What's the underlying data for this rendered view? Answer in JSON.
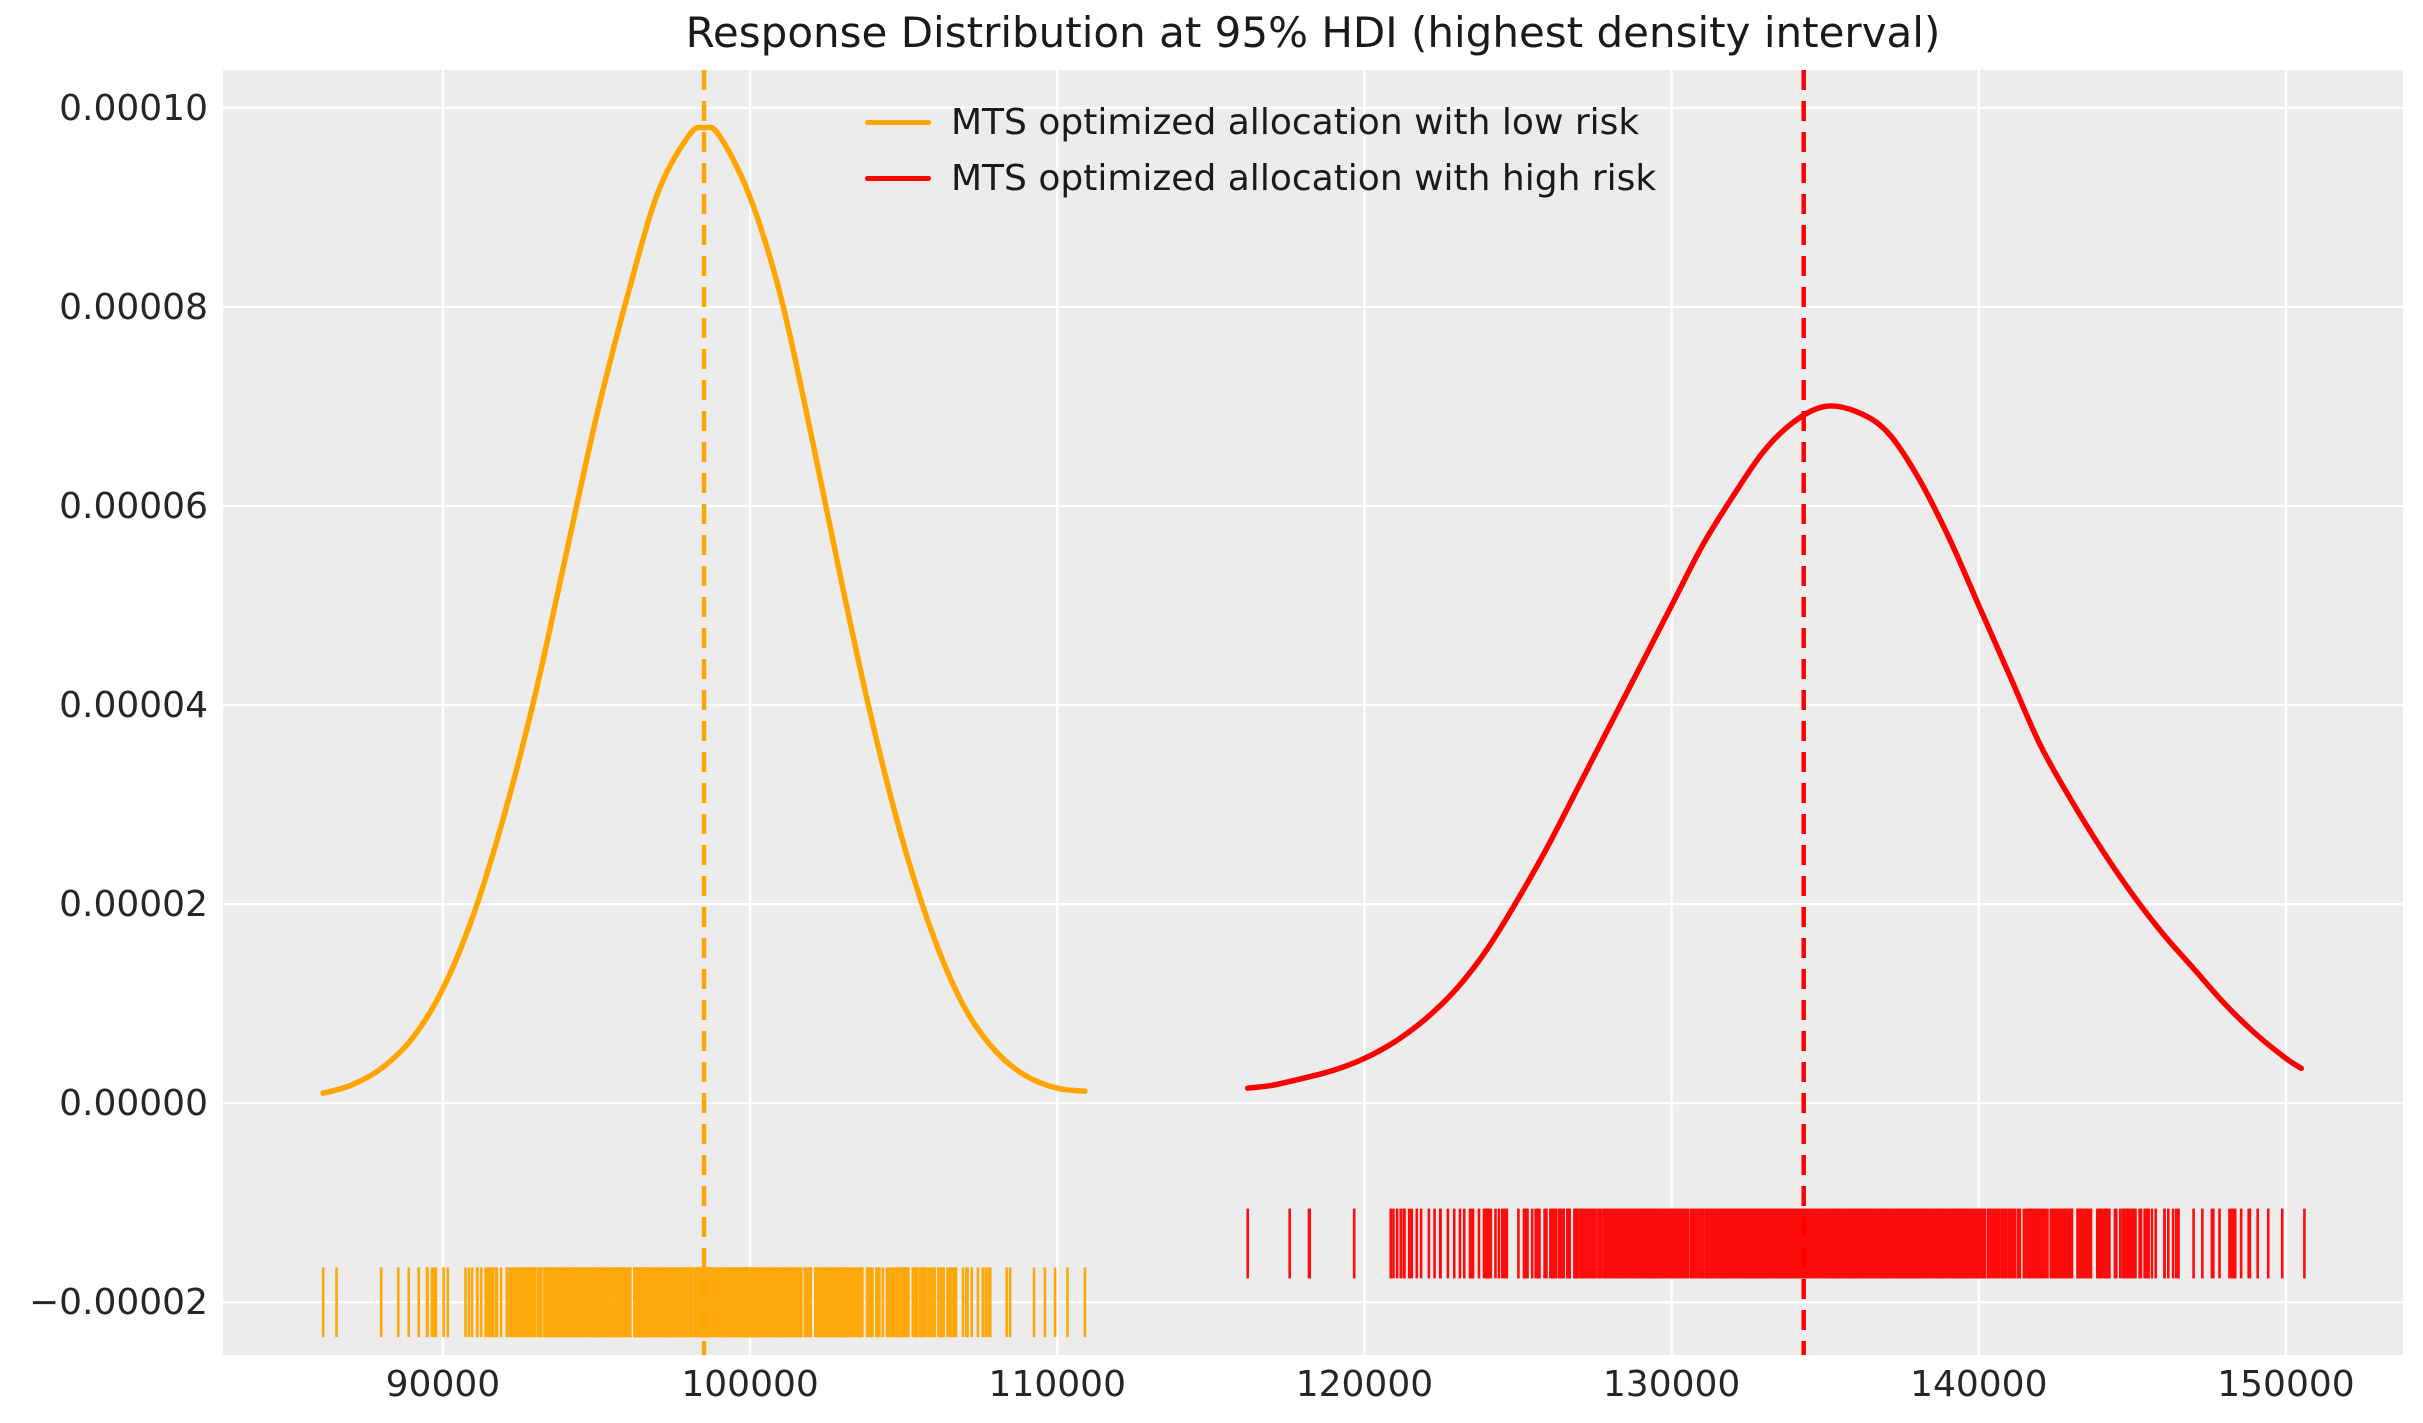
{
  "figure": {
    "background": "#ffffff",
    "plot_background": "#ececec",
    "grid_color": "#ffffff",
    "tick_color": "#262626",
    "title_color": "#1a1a1a"
  },
  "chart_data": {
    "type": "line",
    "title": "Response Distribution at 95% HDI (highest density interval)",
    "xlabel": "",
    "ylabel": "",
    "grid": true,
    "legend_position": "upper center",
    "xlim": [
      82840,
      153810
    ],
    "ylim": [
      -2.53e-05,
      0.0001038
    ],
    "x_tick_values": [
      90000,
      100000,
      110000,
      120000,
      130000,
      140000,
      150000
    ],
    "x_tick_labels": [
      "90000",
      "100000",
      "110000",
      "120000",
      "130000",
      "140000",
      "150000"
    ],
    "y_tick_values": [
      -2e-05,
      0.0,
      2e-05,
      4e-05,
      6e-05,
      8e-05,
      0.0001
    ],
    "y_tick_labels": [
      "−0.00002",
      "0.00000",
      "0.00002",
      "0.00004",
      "0.00006",
      "0.00008",
      "0.00010"
    ],
    "density_scale": 1e-05,
    "rug_half_height": 3.5e-06,
    "series": [
      {
        "name": "MTS optimized allocation with low risk",
        "color": "#ffa500",
        "line_style": "solid",
        "mean_line_x": 98500,
        "mean_line_style": "dashed",
        "peak": {
          "x": 98500,
          "density": 9.8e-05
        },
        "points_x_density1e5": [
          [
            86100,
            0.1
          ],
          [
            87000,
            0.18
          ],
          [
            88000,
            0.35
          ],
          [
            89000,
            0.65
          ],
          [
            90000,
            1.15
          ],
          [
            91000,
            1.9
          ],
          [
            92000,
            2.9
          ],
          [
            93000,
            4.1
          ],
          [
            94000,
            5.5
          ],
          [
            95000,
            6.9
          ],
          [
            96000,
            8.1
          ],
          [
            97000,
            9.15
          ],
          [
            98000,
            9.72
          ],
          [
            98500,
            9.8
          ],
          [
            99000,
            9.72
          ],
          [
            100000,
            9.1
          ],
          [
            101000,
            8.1
          ],
          [
            102000,
            6.7
          ],
          [
            103000,
            5.2
          ],
          [
            104000,
            3.8
          ],
          [
            105000,
            2.6
          ],
          [
            106000,
            1.65
          ],
          [
            107000,
            0.95
          ],
          [
            108000,
            0.52
          ],
          [
            109000,
            0.27
          ],
          [
            110000,
            0.15
          ],
          [
            110900,
            0.12
          ]
        ],
        "rug": {
          "y_value": -2e-05,
          "mean": 98500,
          "sd": 4100,
          "min": 86100,
          "max": 110900,
          "count": 800
        }
      },
      {
        "name": "MTS optimized allocation with high risk",
        "color": "#ff0000",
        "line_style": "solid",
        "mean_line_x": 134300,
        "mean_line_style": "dashed",
        "peak": {
          "x": 135000,
          "density": 7e-05
        },
        "points_x_density1e5": [
          [
            116200,
            0.15
          ],
          [
            117000,
            0.18
          ],
          [
            118000,
            0.25
          ],
          [
            119000,
            0.33
          ],
          [
            120000,
            0.45
          ],
          [
            121000,
            0.62
          ],
          [
            122000,
            0.85
          ],
          [
            123000,
            1.15
          ],
          [
            124000,
            1.55
          ],
          [
            125000,
            2.05
          ],
          [
            126000,
            2.6
          ],
          [
            127000,
            3.2
          ],
          [
            128000,
            3.8
          ],
          [
            129000,
            4.4
          ],
          [
            130000,
            5.0
          ],
          [
            131000,
            5.6
          ],
          [
            132000,
            6.1
          ],
          [
            133000,
            6.55
          ],
          [
            134000,
            6.85
          ],
          [
            135000,
            7.0
          ],
          [
            136000,
            6.95
          ],
          [
            137000,
            6.75
          ],
          [
            138000,
            6.3
          ],
          [
            139000,
            5.7
          ],
          [
            140000,
            5.0
          ],
          [
            141000,
            4.3
          ],
          [
            142000,
            3.6
          ],
          [
            143000,
            3.05
          ],
          [
            144000,
            2.55
          ],
          [
            145000,
            2.1
          ],
          [
            146000,
            1.7
          ],
          [
            147000,
            1.35
          ],
          [
            148000,
            1.0
          ],
          [
            149000,
            0.7
          ],
          [
            150000,
            0.45
          ],
          [
            150500,
            0.35
          ]
        ],
        "rug": {
          "y_value": -1.41e-05,
          "mean": 134800,
          "sd": 5800,
          "min": 116200,
          "max": 150600,
          "count": 1000
        }
      }
    ]
  }
}
